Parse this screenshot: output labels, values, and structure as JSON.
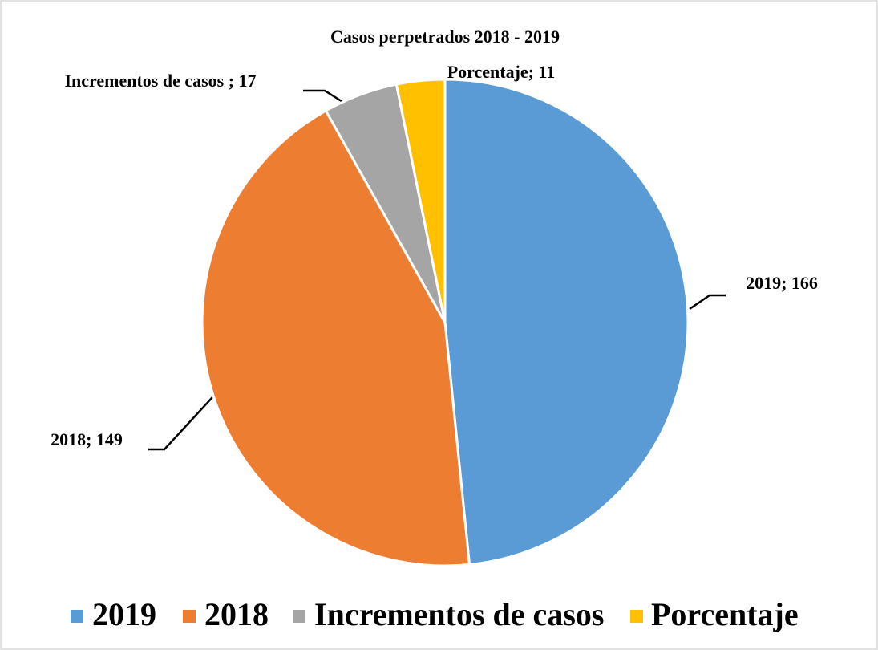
{
  "chart_data": {
    "type": "pie",
    "title": "Casos perpetrados 2018 - 2019",
    "categories": [
      "2019",
      "2018",
      "Incrementos de casos",
      "Porcentaje"
    ],
    "values": [
      166,
      149,
      17,
      11
    ],
    "value_labels": [
      "2019; 166",
      "2018; 149",
      "Incrementos de casos ; 17",
      "Porcentaje; 11"
    ],
    "colors": [
      "#5b9bd5",
      "#ed7d31",
      "#a5a5a5",
      "#ffc000"
    ],
    "legend": "bottom"
  }
}
